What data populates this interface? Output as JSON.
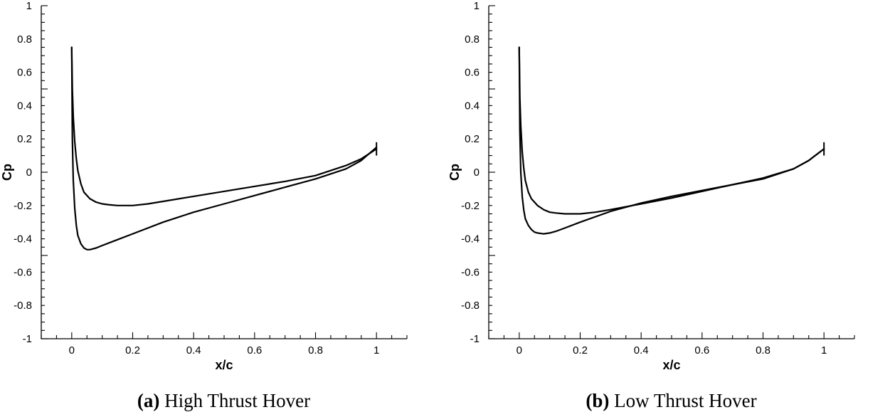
{
  "chart_data": [
    {
      "type": "line",
      "panel_label": "(a)",
      "caption": "High Thrust Hover",
      "xlabel": "x/c",
      "ylabel": "Cp",
      "xlim": [
        -0.1,
        1.1
      ],
      "ylim": [
        -1,
        1
      ],
      "xticks": [
        "0",
        "0.2",
        "0.4",
        "0.6",
        "0.8",
        "1"
      ],
      "yticks": [
        "1",
        "0.8",
        "0.6",
        "0.4",
        "0.2",
        "0",
        "-0.2",
        "-0.4",
        "-0.6",
        "-0.8",
        "-1"
      ],
      "grid": false,
      "series": [
        {
          "x": [
            0.0,
            0.002,
            0.005,
            0.01,
            0.015,
            0.02,
            0.03,
            0.04,
            0.06,
            0.08,
            0.1,
            0.12,
            0.15,
            0.2,
            0.25,
            0.3,
            0.4,
            0.5,
            0.6,
            0.7,
            0.8,
            0.9,
            0.95,
            1.0
          ],
          "y": [
            0.75,
            0.5,
            0.33,
            0.18,
            0.08,
            0.01,
            -0.07,
            -0.12,
            -0.16,
            -0.18,
            -0.19,
            -0.195,
            -0.2,
            -0.2,
            -0.19,
            -0.175,
            -0.145,
            -0.115,
            -0.085,
            -0.055,
            -0.02,
            0.04,
            0.08,
            0.14
          ]
        },
        {
          "x": [
            0.0,
            0.002,
            0.005,
            0.01,
            0.015,
            0.02,
            0.03,
            0.04,
            0.05,
            0.06,
            0.08,
            0.1,
            0.15,
            0.2,
            0.3,
            0.4,
            0.5,
            0.6,
            0.7,
            0.8,
            0.9,
            0.95,
            1.0
          ],
          "y": [
            0.75,
            0.2,
            -0.05,
            -0.22,
            -0.32,
            -0.38,
            -0.43,
            -0.455,
            -0.465,
            -0.465,
            -0.455,
            -0.44,
            -0.405,
            -0.37,
            -0.3,
            -0.24,
            -0.19,
            -0.14,
            -0.09,
            -0.04,
            0.02,
            0.07,
            0.15
          ]
        }
      ]
    },
    {
      "type": "line",
      "panel_label": "(b)",
      "caption": "Low Thrust Hover",
      "xlabel": "x/c",
      "ylabel": "Cp",
      "xlim": [
        -0.1,
        1.1
      ],
      "ylim": [
        -1,
        1
      ],
      "xticks": [
        "0",
        "0.2",
        "0.4",
        "0.6",
        "0.8",
        "1"
      ],
      "yticks": [
        "1",
        "0.8",
        "0.6",
        "0.4",
        "0.2",
        "0",
        "-0.2",
        "-0.4",
        "-0.6",
        "-0.8",
        "-1"
      ],
      "grid": false,
      "series": [
        {
          "x": [
            0.0,
            0.002,
            0.005,
            0.01,
            0.015,
            0.02,
            0.03,
            0.04,
            0.06,
            0.08,
            0.1,
            0.12,
            0.15,
            0.2,
            0.25,
            0.3,
            0.4,
            0.5,
            0.6,
            0.7,
            0.8,
            0.9,
            0.95,
            1.0
          ],
          "y": [
            0.75,
            0.45,
            0.28,
            0.12,
            0.02,
            -0.05,
            -0.12,
            -0.16,
            -0.2,
            -0.225,
            -0.24,
            -0.245,
            -0.25,
            -0.25,
            -0.24,
            -0.225,
            -0.19,
            -0.155,
            -0.115,
            -0.075,
            -0.035,
            0.02,
            0.07,
            0.14
          ]
        },
        {
          "x": [
            0.0,
            0.002,
            0.005,
            0.01,
            0.015,
            0.02,
            0.03,
            0.04,
            0.05,
            0.06,
            0.08,
            0.1,
            0.12,
            0.15,
            0.2,
            0.3,
            0.4,
            0.5,
            0.6,
            0.7,
            0.8,
            0.9,
            0.95,
            1.0
          ],
          "y": [
            0.75,
            0.25,
            0.0,
            -0.15,
            -0.23,
            -0.28,
            -0.32,
            -0.345,
            -0.36,
            -0.365,
            -0.37,
            -0.365,
            -0.355,
            -0.335,
            -0.3,
            -0.235,
            -0.185,
            -0.145,
            -0.11,
            -0.075,
            -0.04,
            0.02,
            0.07,
            0.14
          ]
        }
      ]
    }
  ]
}
